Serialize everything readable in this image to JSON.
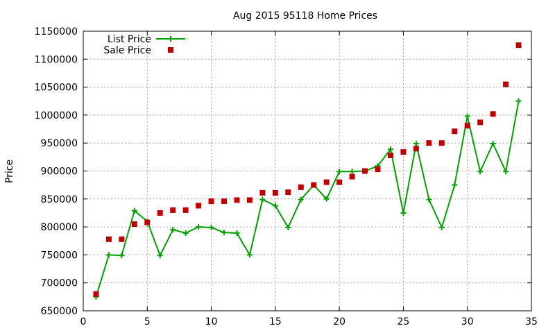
{
  "chart_data": {
    "type": "line",
    "title": "Aug 2015 95118 Home Prices",
    "xlabel": "",
    "ylabel": "Price",
    "xlim": [
      0,
      35
    ],
    "ylim": [
      650000,
      1150000
    ],
    "xticks": [
      0,
      5,
      10,
      15,
      20,
      25,
      30,
      35
    ],
    "yticks": [
      650000,
      700000,
      750000,
      800000,
      850000,
      900000,
      950000,
      1000000,
      1050000,
      1100000,
      1150000
    ],
    "grid": true,
    "legend": "top-left",
    "series": [
      {
        "name": "List Price",
        "style": "linespoints",
        "color": "#00a000",
        "x": [
          1,
          2,
          3,
          4,
          5,
          6,
          7,
          8,
          9,
          10,
          11,
          12,
          13,
          14,
          15,
          16,
          17,
          18,
          19,
          20,
          21,
          22,
          23,
          24,
          25,
          26,
          27,
          28,
          29,
          30,
          31,
          32,
          33,
          34
        ],
        "values": [
          675000,
          750000,
          749000,
          829000,
          810000,
          749000,
          795000,
          789000,
          800000,
          799000,
          790000,
          789000,
          750000,
          849000,
          838000,
          799000,
          849000,
          875000,
          850000,
          899000,
          899000,
          900000,
          909000,
          939000,
          825000,
          949000,
          849000,
          799000,
          875000,
          998000,
          899000,
          949000,
          899000,
          1025000
        ]
      },
      {
        "name": "Sale Price",
        "style": "points",
        "color": "#c00000",
        "x": [
          1,
          2,
          3,
          4,
          5,
          6,
          7,
          8,
          9,
          10,
          11,
          12,
          13,
          14,
          15,
          16,
          17,
          18,
          19,
          20,
          21,
          22,
          23,
          24,
          25,
          26,
          27,
          28,
          29,
          30,
          31,
          32,
          33,
          34
        ],
        "values": [
          680000,
          778000,
          778000,
          805000,
          808000,
          825000,
          830000,
          830000,
          838000,
          846000,
          846000,
          848000,
          848000,
          861000,
          861000,
          862000,
          871000,
          875000,
          880000,
          880000,
          890000,
          900000,
          903000,
          928000,
          934000,
          940000,
          950000,
          950000,
          971000,
          981000,
          987000,
          1002000,
          1055000,
          1125000
        ]
      }
    ]
  }
}
